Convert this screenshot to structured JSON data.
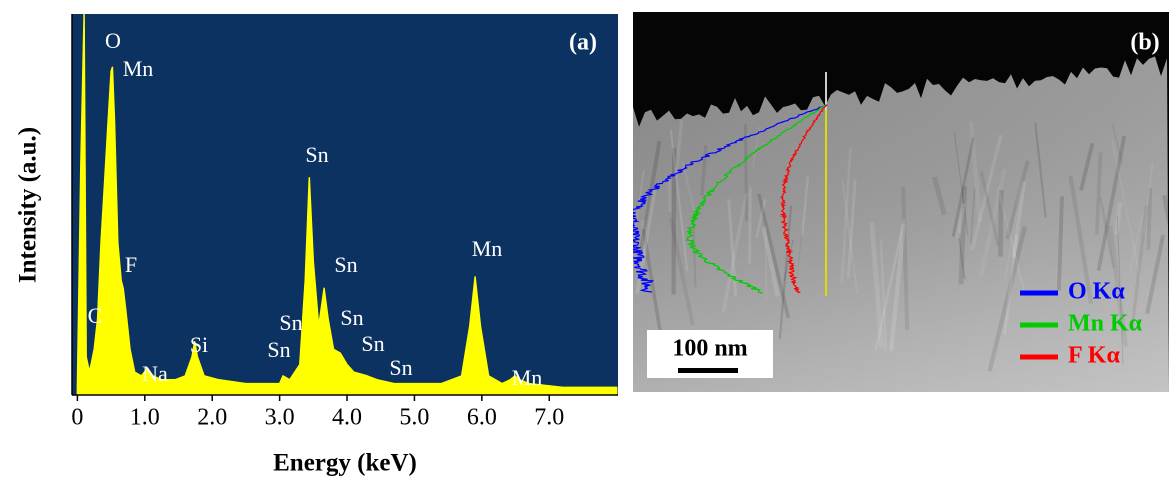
{
  "chart_data": {
    "type": "area",
    "title": "(a)",
    "x_label": "Energy (keV)",
    "y_label": "Intensity (a.u.)",
    "x": [
      0,
      0.05,
      0.1,
      0.13,
      0.18,
      0.25,
      0.3,
      0.35,
      0.4,
      0.45,
      0.5,
      0.52,
      0.55,
      0.6,
      0.65,
      0.68,
      0.72,
      0.78,
      0.85,
      0.95,
      1.04,
      1.12,
      1.25,
      1.45,
      1.6,
      1.7,
      1.74,
      1.78,
      1.88,
      2.1,
      2.5,
      2.8,
      3.0,
      3.05,
      3.15,
      3.3,
      3.38,
      3.44,
      3.5,
      3.58,
      3.66,
      3.72,
      3.8,
      3.9,
      4.0,
      4.1,
      4.3,
      4.45,
      4.7,
      5.0,
      5.4,
      5.7,
      5.82,
      5.9,
      5.98,
      6.1,
      6.3,
      6.42,
      6.49,
      6.56,
      6.7,
      7.2,
      7.6,
      8.0
    ],
    "values": [
      2,
      60,
      100,
      10,
      6,
      12,
      20,
      40,
      55,
      70,
      85,
      86,
      72,
      40,
      30,
      28,
      22,
      12,
      6,
      5,
      7,
      5,
      4,
      4,
      5,
      10,
      14,
      10,
      5,
      4,
      3,
      3,
      3,
      5,
      4,
      8,
      30,
      57,
      35,
      18,
      28,
      20,
      12,
      11,
      8,
      6,
      5,
      4,
      3,
      3,
      3,
      5,
      18,
      31,
      18,
      5,
      3,
      4,
      5,
      4,
      3,
      2,
      2,
      2
    ],
    "color": "#ffff00",
    "background": "#0b3260",
    "xlim": [
      -0.08,
      8.02
    ],
    "ylim": [
      0,
      100
    ],
    "xticks": [
      0,
      {
        "value": 1,
        "label": "1.0"
      },
      {
        "value": 2,
        "label": "2.0"
      },
      {
        "value": 3,
        "label": "3.0"
      },
      {
        "value": 4,
        "label": "4.0"
      },
      {
        "value": 5,
        "label": "5.0"
      },
      {
        "value": 6,
        "label": "6.0"
      },
      {
        "value": 7,
        "label": "7.0"
      }
    ],
    "annotations": [
      "O",
      "Mn",
      "F",
      "C",
      "Na",
      "Si",
      "Sn",
      "Sn",
      "Sn",
      "Sn",
      "Sn",
      "Sn",
      "Sn",
      "Mn",
      "Mn"
    ]
  },
  "image": {
    "label": "(b)",
    "scale_bar": "100 nm",
    "legend": [
      {
        "name": "O Kα",
        "color": "#0000ff"
      },
      {
        "name": "Mn Kα",
        "color": "#00cc00"
      },
      {
        "name": "F Kα",
        "color": "#ff0000"
      }
    ]
  }
}
